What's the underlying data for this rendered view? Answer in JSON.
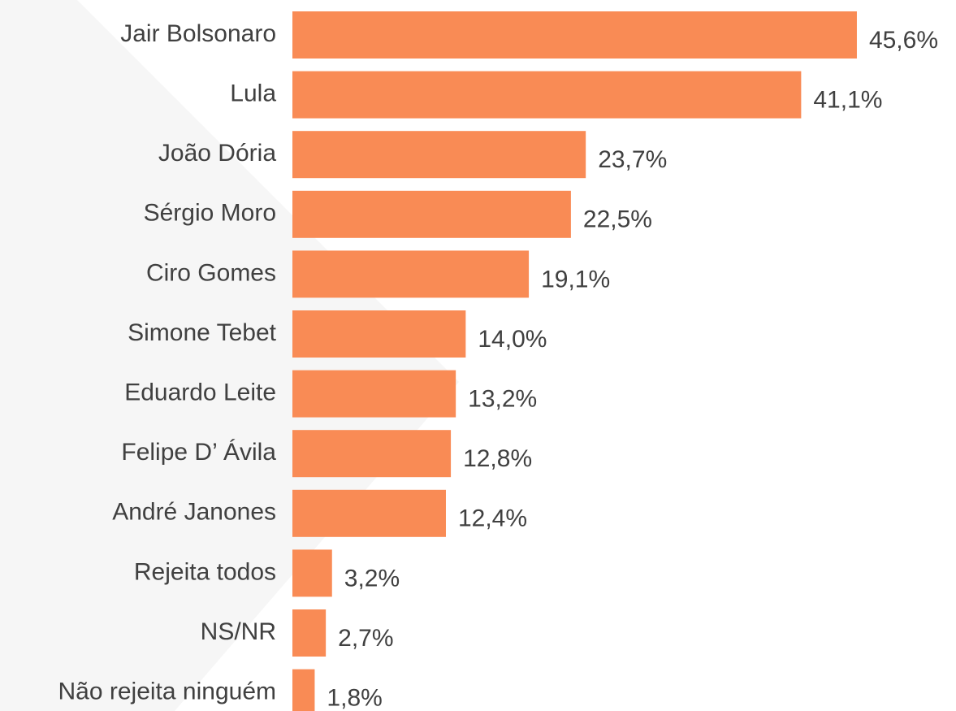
{
  "chart_data": {
    "type": "bar",
    "orientation": "horizontal",
    "color": "#f98b55",
    "categories": [
      "Jair Bolsonaro",
      "Lula",
      "João Dória",
      "Sérgio Moro",
      "Ciro Gomes",
      "Simone Tebet",
      "Eduardo Leite",
      "Felipe D’ Ávila",
      "André Janones",
      "Rejeita todos",
      "NS/NR",
      "Não rejeita ninguém"
    ],
    "values": [
      45.6,
      41.1,
      23.7,
      22.5,
      19.1,
      14.0,
      13.2,
      12.8,
      12.4,
      3.2,
      2.7,
      1.8
    ],
    "value_labels": [
      "45,6%",
      "41,1%",
      "23,7%",
      "22,5%",
      "19,1%",
      "14,0%",
      "13,2%",
      "12,8%",
      "12,4%",
      "3,2%",
      "2,7%",
      "1,8%"
    ]
  }
}
